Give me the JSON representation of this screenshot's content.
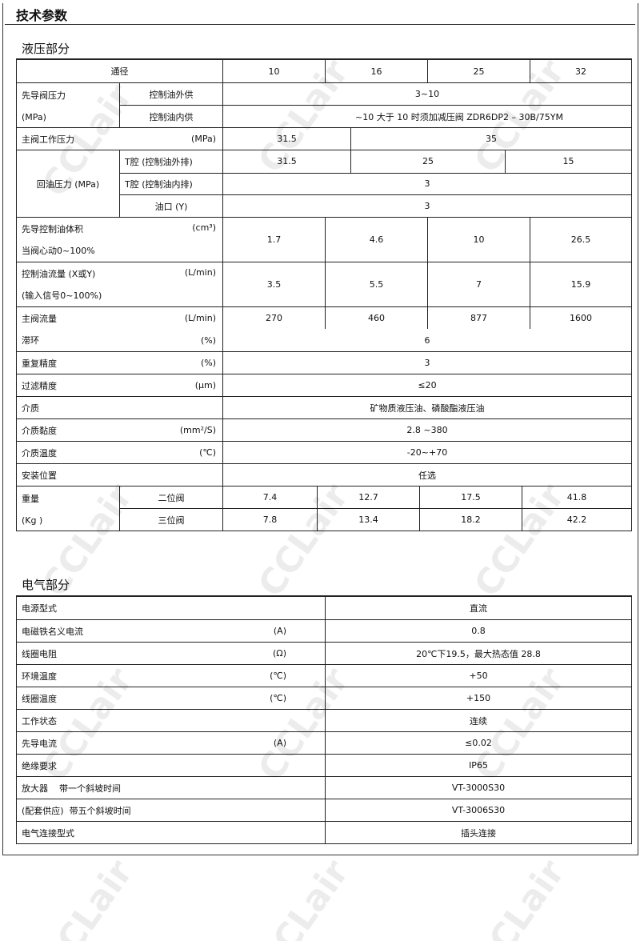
{
  "title": "技术参数",
  "watermark": "CCLair",
  "hydraulic": {
    "section_title": "液压部分",
    "header": {
      "label": "通径",
      "sizes": [
        "10",
        "16",
        "25",
        "32"
      ]
    },
    "pilot_pressure": {
      "label": "先导阀压力",
      "unit": "(MPa)",
      "external": {
        "label": "控制油外供",
        "value": "3~10"
      },
      "internal": {
        "label": "控制油内供",
        "value": "~10 大于 10 时须加减压阀 ZDR6DP2 – 30B/75YM"
      }
    },
    "main_pressure": {
      "label": "主阀工作压力",
      "unit": "(MPa)",
      "values": [
        "31.5",
        "35"
      ]
    },
    "return_pressure": {
      "label": "回油压力 (MPa)",
      "t_external": {
        "label": "T腔 (控制油外排)",
        "values": [
          "31.5",
          "25",
          "15"
        ]
      },
      "t_internal": {
        "label": "T腔 (控制油内排)",
        "value": "3"
      },
      "port_y": {
        "label": "油口 (Y)",
        "value": "3"
      }
    },
    "pilot_volume": {
      "label": "先导控制油体积",
      "unit": "(cm³)",
      "note": "当阀心动0~100%",
      "values": [
        "1.7",
        "4.6",
        "10",
        "26.5"
      ]
    },
    "control_flow": {
      "label": "控制油流量 (X或Y)",
      "unit": "(L/min)",
      "note": "(输入信号0~100%)",
      "values": [
        "3.5",
        "5.5",
        "7",
        "15.9"
      ]
    },
    "main_flow": {
      "label": "主阀流量",
      "unit": "(L/min)",
      "values": [
        "270",
        "460",
        "877",
        "1600"
      ]
    },
    "single_rows": [
      {
        "label": "滞环",
        "unit": "(%)",
        "value": "6"
      },
      {
        "label": "重复精度",
        "unit": "(%)",
        "value": "3"
      },
      {
        "label": "过滤精度",
        "unit": "(μm)",
        "value": "≤20"
      },
      {
        "label": "介质",
        "unit": "",
        "value": "矿物质液压油、磷酸酯液压油"
      },
      {
        "label": "介质黏度",
        "unit": "(mm²/S)",
        "value": "2.8 ~380"
      },
      {
        "label": "介质温度",
        "unit": "(℃)",
        "value": "-20~+70"
      },
      {
        "label": "安装位置",
        "unit": "",
        "value": "任选"
      }
    ],
    "weight": {
      "label": "重量",
      "unit": "(Kg )",
      "two_position": {
        "label": "二位阀",
        "values": [
          "7.4",
          "12.7",
          "17.5",
          "41.8"
        ]
      },
      "three_position": {
        "label": "三位阀",
        "values": [
          "7.8",
          "13.4",
          "18.2",
          "42.2"
        ]
      }
    }
  },
  "electrical": {
    "section_title": "电气部分",
    "rows": [
      {
        "label": "电源型式",
        "unit": "",
        "value": "直流"
      },
      {
        "label": "电磁铁名义电流",
        "unit": "(A)",
        "value": "0.8"
      },
      {
        "label": "线圈电阻",
        "unit": "(Ω)",
        "value": "20℃下19.5，最大热态值 28.8"
      },
      {
        "label": "环境温度",
        "unit": "(℃)",
        "value": "+50"
      },
      {
        "label": "线圈温度",
        "unit": "(℃)",
        "value": "+150"
      },
      {
        "label": "工作状态",
        "unit": "",
        "value": "连续"
      },
      {
        "label": "先导电流",
        "unit": "(A)",
        "value": "≤0.02"
      },
      {
        "label": "绝缘要求",
        "unit": "",
        "value": "IP65"
      },
      {
        "label": "放大器    带一个斜坡时间",
        "unit": "",
        "value": "VT-3000S30"
      },
      {
        "label": "(配套供应)  带五个斜坡时间",
        "unit": "",
        "value": "VT-3006S30"
      },
      {
        "label": "电气连接型式",
        "unit": "",
        "value": "插头连接"
      }
    ]
  }
}
